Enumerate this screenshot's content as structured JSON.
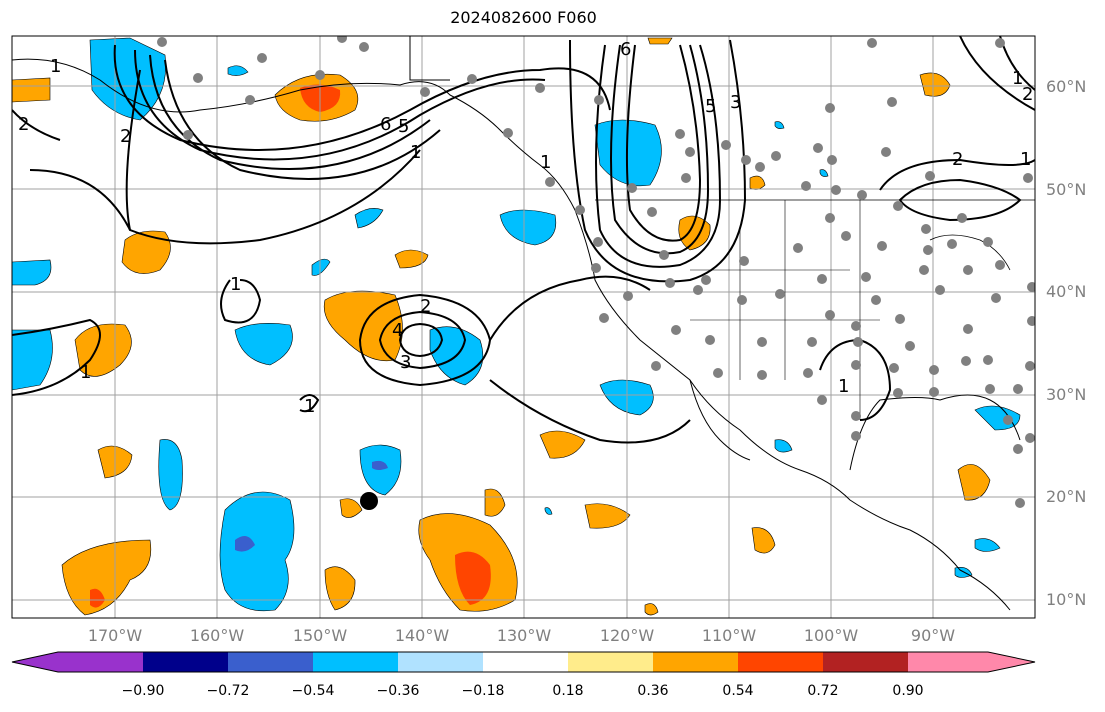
{
  "title": "2024082600 F060",
  "lat_labels": [
    "60°N",
    "50°N",
    "40°N",
    "30°N",
    "20°N",
    "10°N"
  ],
  "lon_labels": [
    "170°W",
    "160°W",
    "150°W",
    "140°W",
    "130°W",
    "120°W",
    "110°W",
    "100°W",
    "90°W"
  ],
  "contour_labels": [
    "1",
    "2",
    "2",
    "1",
    "6",
    "5",
    "1",
    "6",
    "5",
    "3",
    "2",
    "1",
    "1",
    "1",
    "2",
    "3",
    "4",
    "1",
    "1",
    "2",
    "1"
  ],
  "colorbar": {
    "ticks": [
      "−0.90",
      "−0.72",
      "−0.54",
      "−0.36",
      "−0.18",
      "0.18",
      "0.36",
      "0.54",
      "0.72",
      "0.90"
    ],
    "colors": [
      "#9932cc",
      "#00008b",
      "#3a5fcd",
      "#00bfff",
      "#b0e2ff",
      "#ffffff",
      "#ffec8b",
      "#ffa500",
      "#ff4500",
      "#b22222",
      "#ff88aa"
    ]
  },
  "marker": "black-dot"
}
